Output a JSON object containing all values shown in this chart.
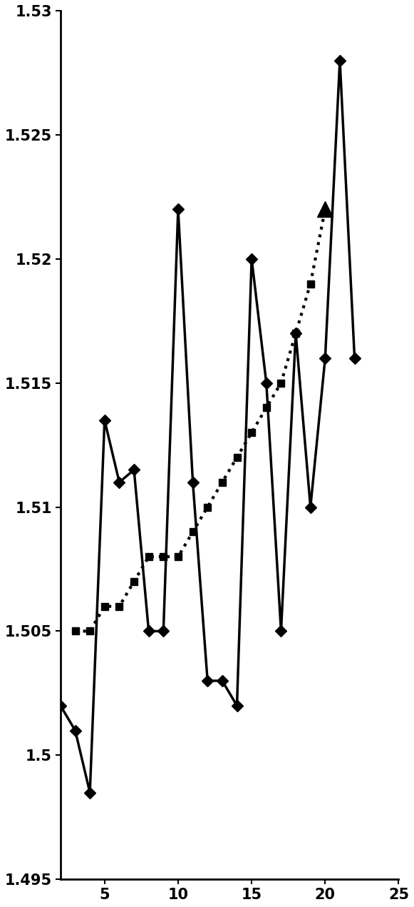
{
  "solid_x": [
    2,
    3,
    4,
    5,
    6,
    7,
    8,
    9,
    10,
    11,
    12,
    13,
    14,
    15,
    16,
    17,
    18,
    19,
    20,
    21,
    22
  ],
  "solid_y": [
    1.502,
    1.501,
    1.4985,
    1.5135,
    1.511,
    1.5115,
    1.505,
    1.505,
    1.522,
    1.511,
    1.503,
    1.503,
    1.502,
    1.52,
    1.515,
    1.505,
    1.517,
    1.51,
    1.516,
    1.528,
    1.516
  ],
  "dotted_x": [
    3,
    4,
    5,
    6,
    7,
    8,
    9,
    10,
    11,
    12,
    13,
    14,
    15,
    16,
    17,
    18,
    19,
    20
  ],
  "dotted_y": [
    1.505,
    1.505,
    1.506,
    1.506,
    1.507,
    1.508,
    1.508,
    1.508,
    1.509,
    1.51,
    1.511,
    1.512,
    1.513,
    1.514,
    1.515,
    1.517,
    1.519,
    1.522
  ],
  "xlim": [
    2,
    25
  ],
  "ylim": [
    1.495,
    1.53
  ],
  "xticks": [
    5,
    10,
    15,
    20,
    25
  ],
  "yticks": [
    1.495,
    1.5,
    1.505,
    1.51,
    1.515,
    1.52,
    1.525,
    1.53
  ],
  "ytick_labels": [
    "1.495",
    "1.5",
    "1.505",
    "1.51",
    "1.515",
    "1.52",
    "1.525",
    "1.53"
  ],
  "bg_color": "#ffffff",
  "line_color": "#000000"
}
